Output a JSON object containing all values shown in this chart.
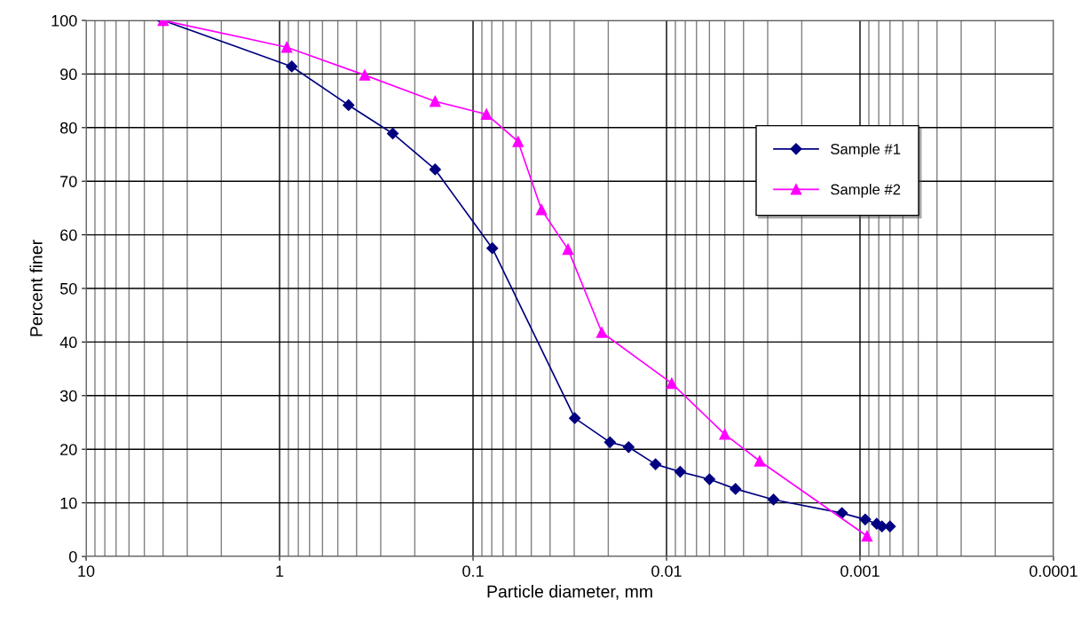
{
  "chart_data": {
    "type": "line",
    "xlabel": "Particle diameter, mm",
    "ylabel": "Percent finer",
    "log": "x",
    "grid": true,
    "legend": "right",
    "line_style": "solid",
    "xlim": [
      10,
      0.0001
    ],
    "xticks": [
      10,
      1,
      0.1,
      0.01,
      0.001,
      0.0001
    ],
    "ylim": [
      0,
      100
    ],
    "yticks": [
      0,
      10,
      20,
      30,
      40,
      50,
      60,
      70,
      80,
      90,
      100
    ],
    "series": [
      {
        "name": "Sample #1",
        "color": "#000080",
        "marker": "diamond",
        "x": [
          4.0,
          0.865,
          0.44,
          0.26,
          0.157,
          0.0795,
          0.0298,
          0.0196,
          0.0157,
          0.0114,
          0.0085,
          0.006,
          0.0044,
          0.0028,
          0.00124,
          0.00094,
          0.00082,
          0.00077,
          0.0007
        ],
        "values": [
          100,
          91.4,
          84.2,
          78.9,
          72.2,
          57.5,
          25.8,
          21.3,
          20.4,
          17.2,
          15.8,
          14.4,
          12.6,
          10.6,
          8.1,
          6.9,
          6.1,
          5.6,
          5.6
        ]
      },
      {
        "name": "Sample #2",
        "color": "#ff00ff",
        "marker": "triangle",
        "x": [
          4.0,
          0.918,
          0.363,
          0.157,
          0.0853,
          0.0585,
          0.0443,
          0.0323,
          0.0216,
          0.0094,
          0.005,
          0.0033,
          0.00092
        ],
        "values": [
          100,
          95.0,
          89.8,
          84.9,
          82.5,
          77.4,
          64.7,
          57.3,
          41.8,
          32.3,
          22.8,
          17.8,
          3.8
        ]
      }
    ]
  }
}
